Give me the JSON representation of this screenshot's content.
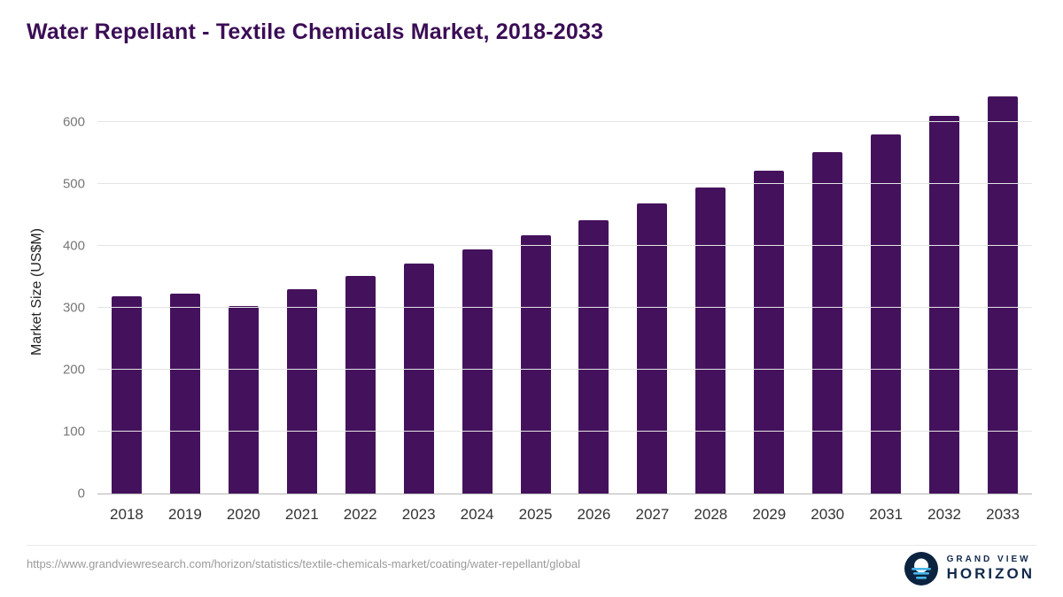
{
  "chart_data": {
    "type": "bar",
    "title": "Water Repellant - Textile Chemicals Market, 2018-2033",
    "ylabel": "Market Size (US$M)",
    "xlabel": "",
    "categories": [
      "2018",
      "2019",
      "2020",
      "2021",
      "2022",
      "2023",
      "2024",
      "2025",
      "2026",
      "2027",
      "2028",
      "2029",
      "2030",
      "2031",
      "2032",
      "2033"
    ],
    "values": [
      318,
      323,
      303,
      330,
      352,
      372,
      394,
      417,
      442,
      468,
      495,
      522,
      551,
      580,
      610,
      642
    ],
    "ylim": [
      0,
      650
    ],
    "yticks": [
      0,
      100,
      200,
      300,
      400,
      500,
      600
    ],
    "grid": true,
    "legend": false,
    "bar_color": "#44125c",
    "title_color": "#3b0d55",
    "grid_color": "#e4e4e4"
  },
  "footer": {
    "source_url": "https://www.grandviewresearch.com/horizon/statistics/textile-chemicals-market/coating/water-repellant/global",
    "brand_line1": "GRAND VIEW",
    "brand_line2": "HORIZON",
    "logo_icon": "horizon-circle-icon",
    "logo_navy": "#0c2340",
    "logo_blue": "#45b6e8"
  }
}
